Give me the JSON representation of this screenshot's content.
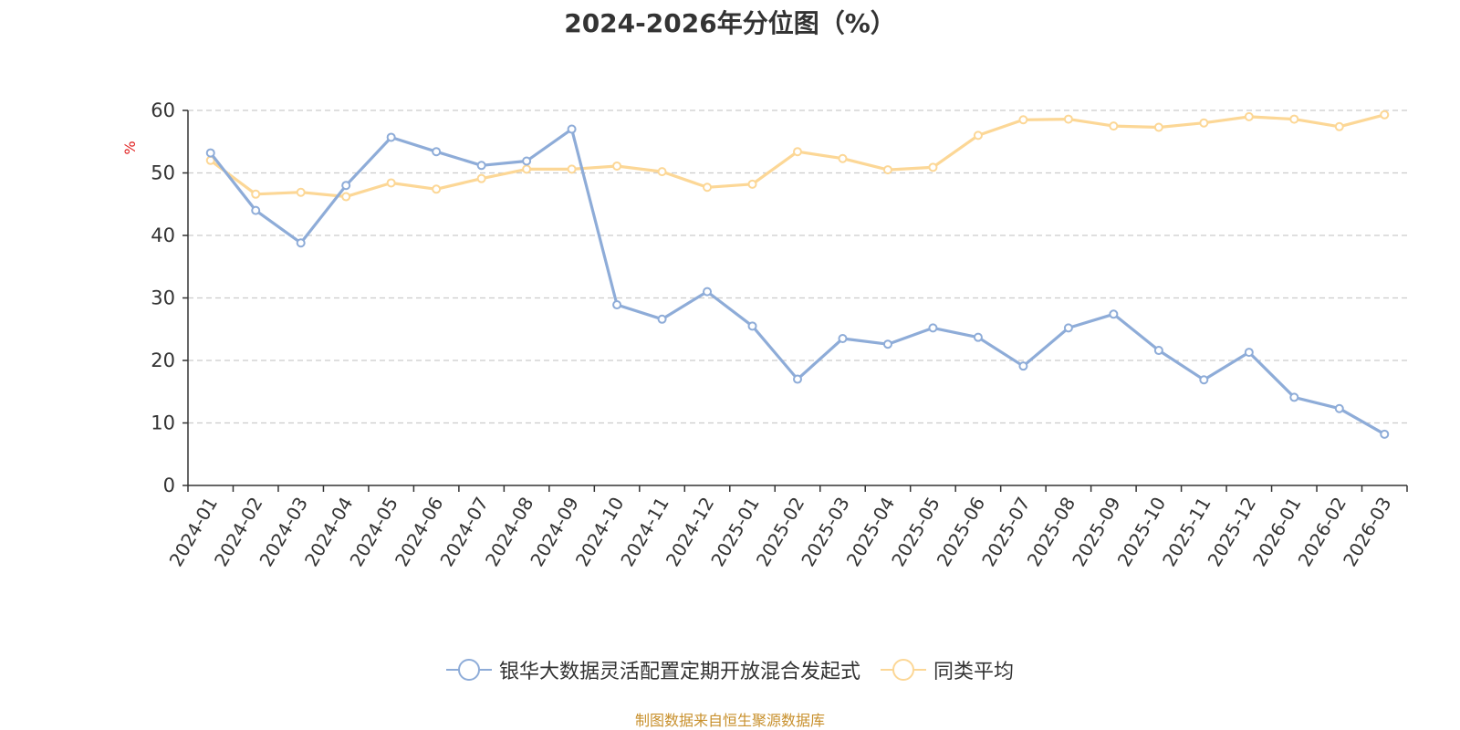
{
  "chart_data": {
    "type": "line",
    "title": "2024-2026年分位图（%）",
    "ylabel": "%",
    "xlabel": "",
    "ylim": [
      0,
      60
    ],
    "yticks": [
      0,
      10,
      20,
      30,
      40,
      50,
      60
    ],
    "grid": true,
    "legend_position": "bottom",
    "categories": [
      "2024-01",
      "2024-02",
      "2024-03",
      "2024-04",
      "2024-05",
      "2024-06",
      "2024-07",
      "2024-08",
      "2024-09",
      "2024-10",
      "2024-11",
      "2024-12",
      "2025-01",
      "2025-02",
      "2025-03",
      "2025-04",
      "2025-05",
      "2025-06",
      "2025-07",
      "2025-08",
      "2025-09",
      "2025-10",
      "2025-11",
      "2025-12",
      "2026-01",
      "2026-02",
      "2026-03"
    ],
    "series": [
      {
        "name": "银华大数据灵活配置定期开放混合发起式",
        "color": "#8eacd8",
        "values": [
          53.2,
          44.0,
          38.8,
          48.0,
          55.7,
          53.4,
          51.2,
          51.9,
          57.0,
          28.9,
          26.6,
          31.0,
          25.5,
          17.0,
          23.5,
          22.6,
          25.2,
          23.7,
          19.1,
          25.2,
          27.4,
          21.6,
          16.9,
          21.3,
          14.1,
          12.3,
          8.2
        ]
      },
      {
        "name": "同类平均",
        "color": "#fcd796",
        "values": [
          52.0,
          46.6,
          46.9,
          46.2,
          48.4,
          47.4,
          49.1,
          50.6,
          50.6,
          51.1,
          50.2,
          47.7,
          48.2,
          53.4,
          52.3,
          50.5,
          50.9,
          56.0,
          58.5,
          58.6,
          57.5,
          57.3,
          58.0,
          59.0,
          58.6,
          57.4,
          59.3
        ]
      }
    ]
  },
  "footer": {
    "source": "制图数据来自恒生聚源数据库"
  }
}
